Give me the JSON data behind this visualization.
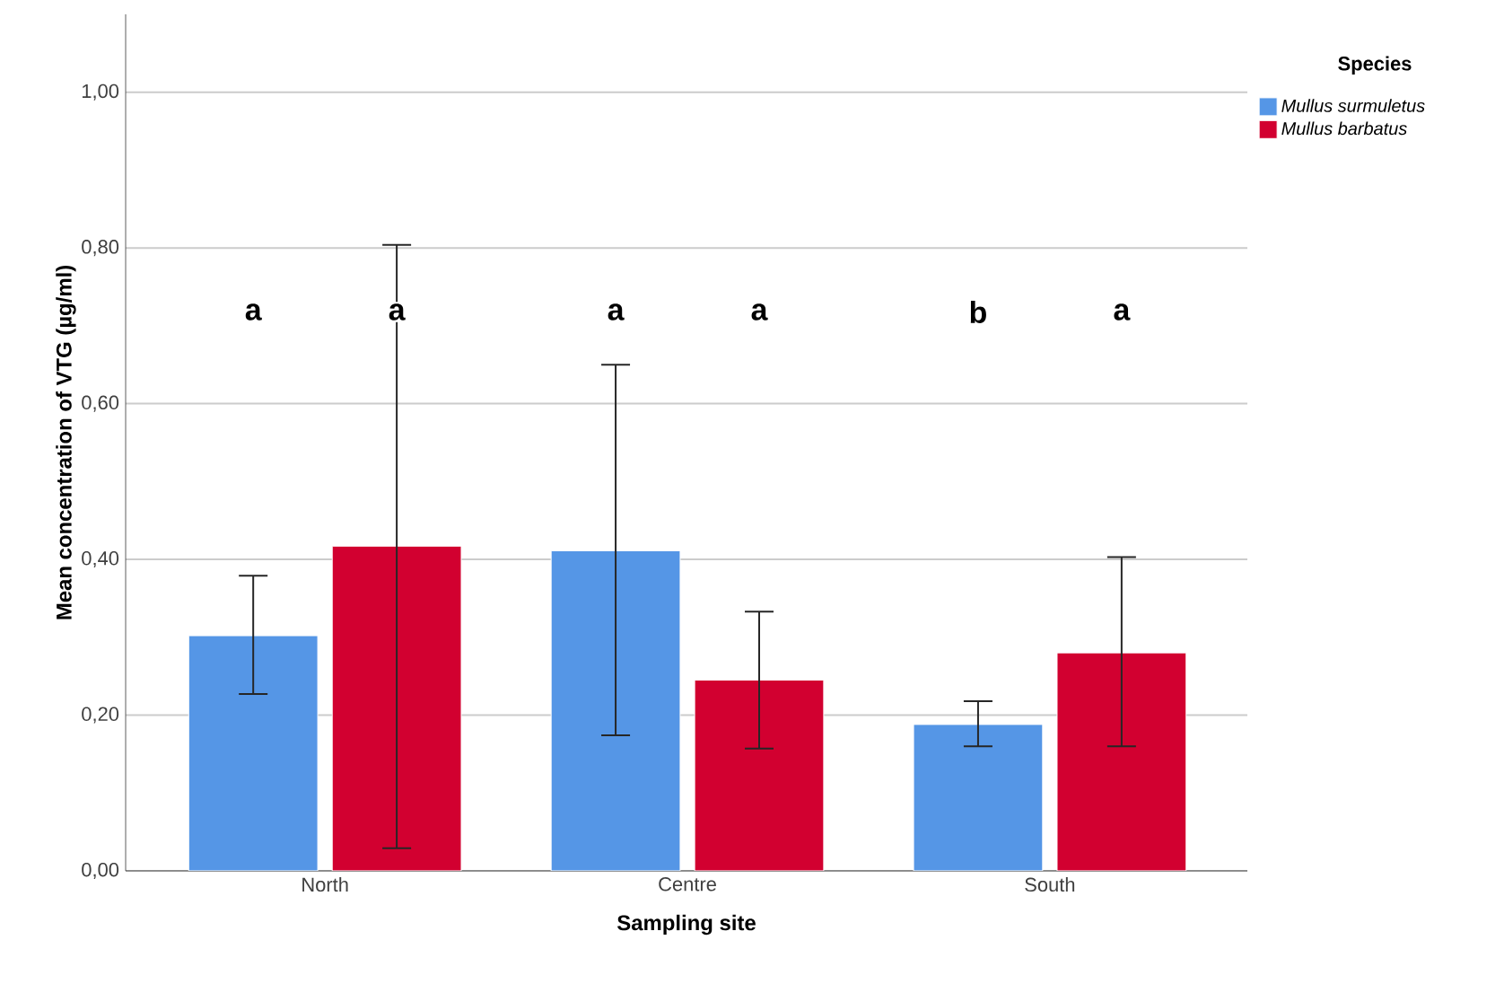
{
  "chart_data": {
    "type": "bar",
    "xlabel": "Sampling site",
    "ylabel": "Mean concentration of VTG (µg/ml)",
    "legend_title": "Species",
    "categories": [
      "North",
      "Centre",
      "South"
    ],
    "series": [
      {
        "name": "Mullus surmuletus",
        "color": "#5596e6",
        "values": [
          0.302,
          0.411,
          0.188
        ],
        "errors": [
          [
            0.227,
            0.379
          ],
          [
            0.174,
            0.65
          ],
          [
            0.16,
            0.218
          ]
        ]
      },
      {
        "name": "Mullus barbatus",
        "color": "#d20030",
        "values": [
          0.417,
          0.245,
          0.28
        ],
        "errors": [
          [
            0.029,
            0.804
          ],
          [
            0.157,
            0.333
          ],
          [
            0.16,
            0.403
          ]
        ]
      }
    ],
    "ylim": [
      0,
      1.1
    ],
    "yticks": [
      {
        "value": 0,
        "label": "0,00"
      },
      {
        "value": 0.2,
        "label": "0,20"
      },
      {
        "value": 0.4,
        "label": "0,40"
      },
      {
        "value": 0.6,
        "label": "0,60"
      },
      {
        "value": 0.8,
        "label": "0,80"
      },
      {
        "value": 1.0,
        "label": "1,00"
      }
    ],
    "grid": "y",
    "legend": "top right",
    "annotations": [
      "a",
      "a",
      "a",
      "a",
      "b",
      "a"
    ]
  }
}
